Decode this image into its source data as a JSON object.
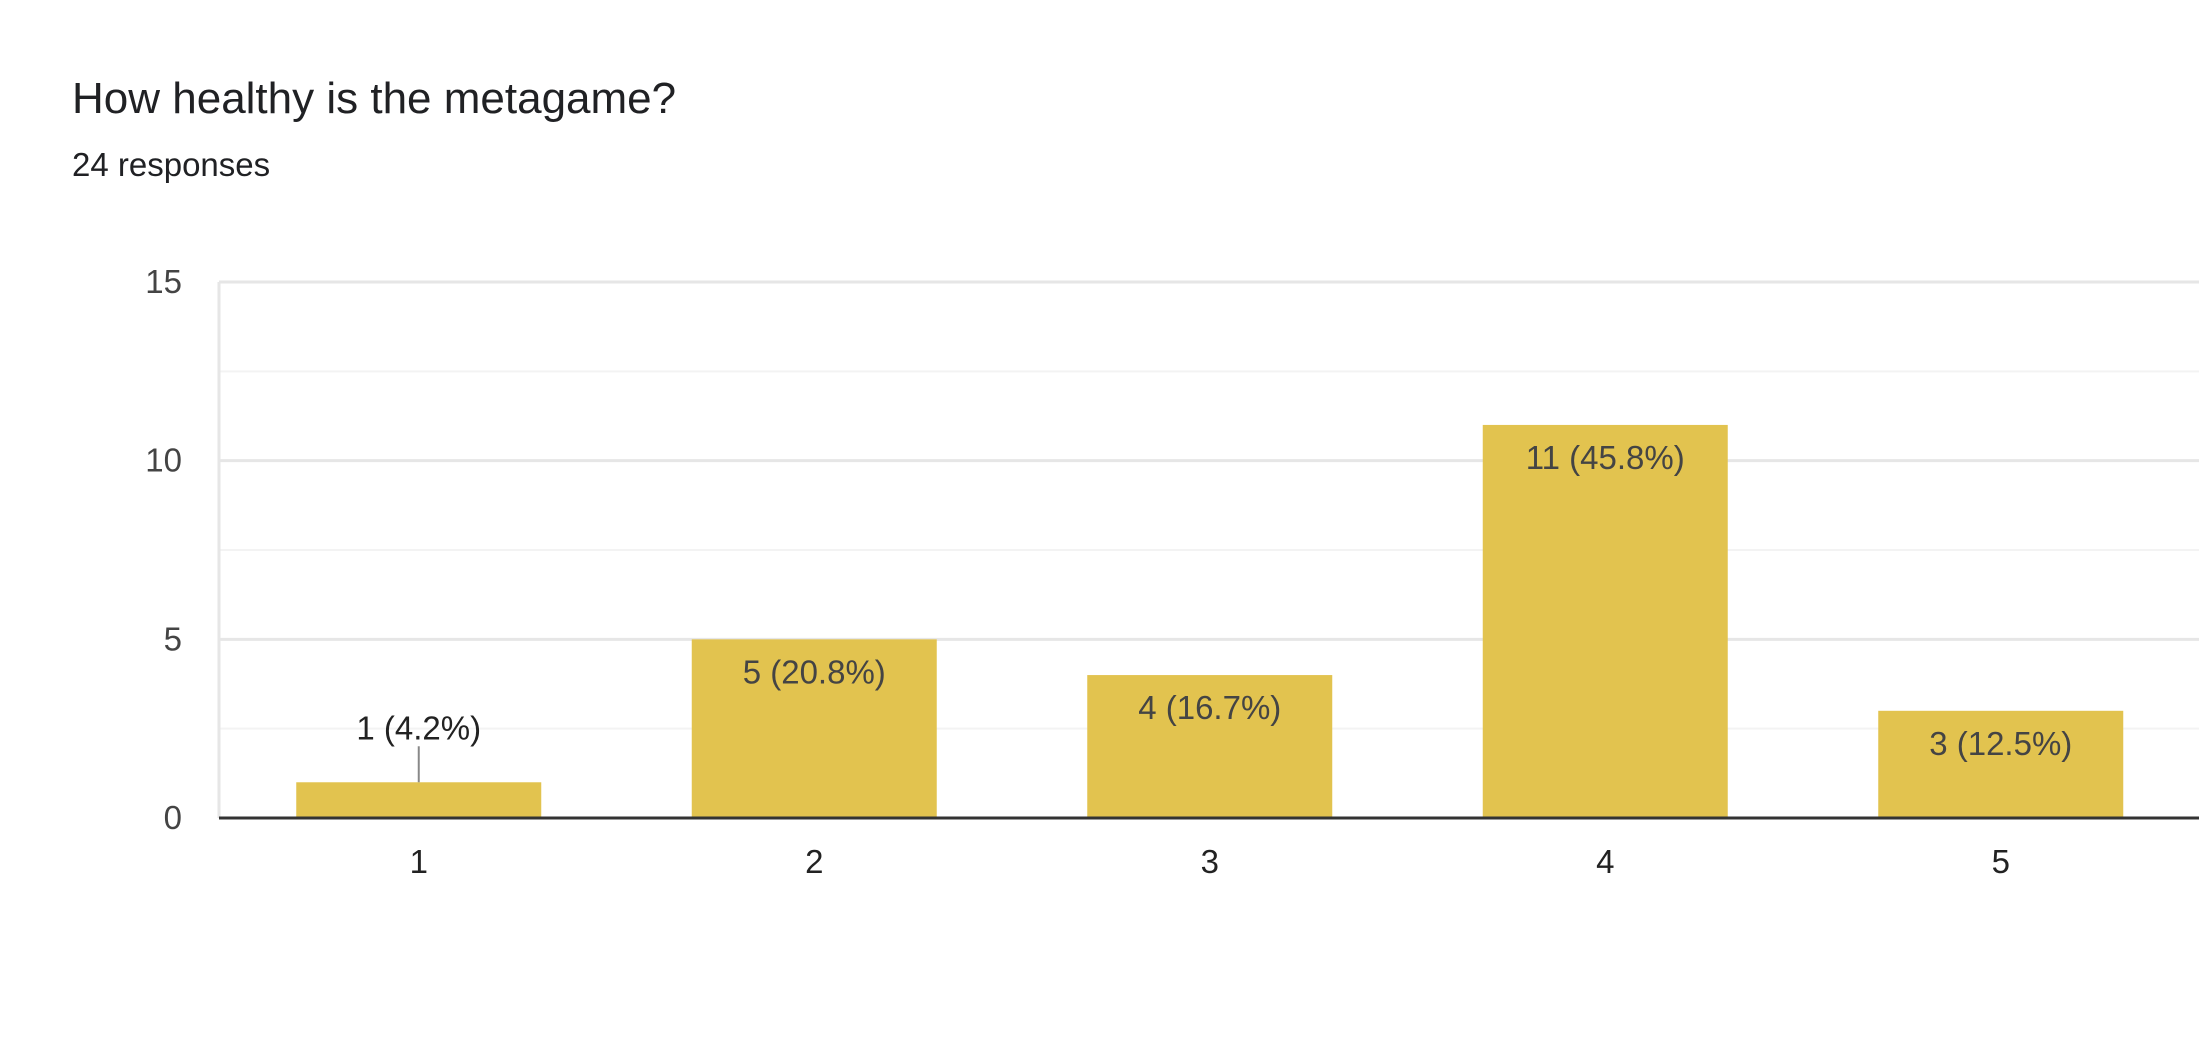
{
  "header": {
    "title": "How healthy is the metagame?",
    "subtitle": "24 responses"
  },
  "colors": {
    "bar": "#e2c34f",
    "grid_major": "#e6e6e6",
    "grid_minor": "#f3f3f3",
    "baseline": "#333333",
    "leader": "#888888"
  },
  "chart_data": {
    "type": "bar",
    "title": "How healthy is the metagame?",
    "subtitle": "24 responses",
    "xlabel": "",
    "ylabel": "",
    "categories": [
      "1",
      "2",
      "3",
      "4",
      "5"
    ],
    "values": [
      1,
      5,
      4,
      11,
      3
    ],
    "data_labels": [
      "1 (4.2%)",
      "5 (20.8%)",
      "4 (16.7%)",
      "11 (45.8%)",
      "3 (12.5%)"
    ],
    "ylim": [
      0,
      15
    ],
    "yticks": [
      0,
      5,
      10,
      15
    ],
    "ytick_labels": [
      "0",
      "5",
      "10",
      "15"
    ],
    "grid": true,
    "legend": "none"
  }
}
